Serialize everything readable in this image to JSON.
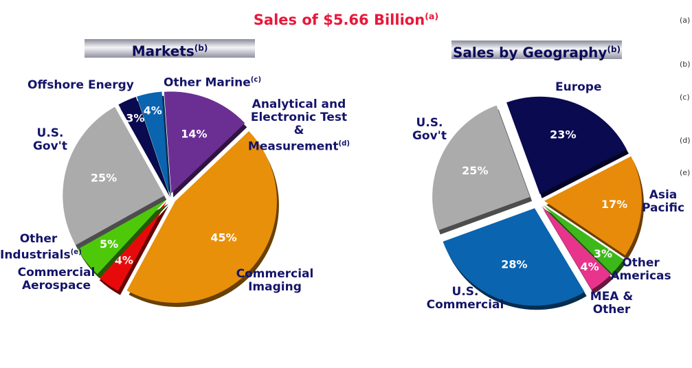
{
  "title": "Sales of $5.66 Billion",
  "title_note": "(a)",
  "footnotes": [
    "(a)",
    "(b)",
    "(c)",
    "(d)",
    "(e)"
  ],
  "chart_data": [
    {
      "type": "pie",
      "title": "Markets",
      "title_note": "(b)",
      "slices": [
        {
          "label": "Analytical and Electronic Test & Measurement",
          "note": "(d)",
          "value": 14,
          "value_label": "14%",
          "color": "#6b2f94"
        },
        {
          "label": "Commercial Imaging",
          "value": 45,
          "value_label": "45%",
          "color": "#e8900a"
        },
        {
          "label": "Commercial Aerospace",
          "value": 4,
          "value_label": "4%",
          "color": "#e80a0a"
        },
        {
          "label": "Other Industrials",
          "note": "(e)",
          "value": 5,
          "value_label": "5%",
          "color": "#4ec90a"
        },
        {
          "label": "U.S. Gov't",
          "value": 25,
          "value_label": "25%",
          "color": "#ababab"
        },
        {
          "label": "Offshore Energy",
          "value": 3,
          "value_label": "3%",
          "color": "#0a0a50"
        },
        {
          "label": "Other Marine",
          "note": "(c)",
          "value": 4,
          "value_label": "4%",
          "color": "#0a64b0"
        }
      ]
    },
    {
      "type": "pie",
      "title": "Sales by Geography",
      "title_note": "(b)",
      "slices": [
        {
          "label": "Europe",
          "value": 23,
          "value_label": "23%",
          "color": "#0a0a50"
        },
        {
          "label": "Asia Pacific",
          "value": 17,
          "value_label": "17%",
          "color": "#e88a0a"
        },
        {
          "label": "Other Americas",
          "value": 3,
          "value_label": "3%",
          "color": "#3cb81a"
        },
        {
          "label": "MEA & Other",
          "value": 4,
          "value_label": "4%",
          "color": "#e8348c"
        },
        {
          "label": "U.S. Commercial",
          "value": 28,
          "value_label": "28%",
          "color": "#0a64b0"
        },
        {
          "label": "U.S. Gov't",
          "value": 25,
          "value_label": "25%",
          "color": "#ababab"
        }
      ]
    }
  ]
}
